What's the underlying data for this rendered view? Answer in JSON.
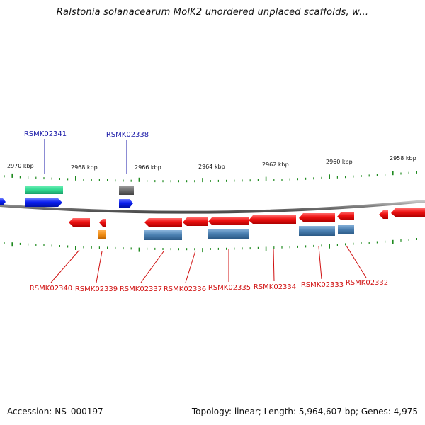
{
  "title": "Ralstonia solanacearum MolK2 unordered unplaced scaffolds, w...",
  "footer": {
    "accession": "Accession: NS_000197",
    "summary": "Topology: linear; Length: 5,964,607 bp; Genes: 4,975"
  },
  "colors": {
    "forward_gene": "#0a1ef0",
    "reverse_gene": "#f01010",
    "forward_label": "#1a1aa8",
    "reverse_label": "#d01010",
    "tick": "#1f8a1f",
    "backbone": "#8a8a8a",
    "rna_green": "#30d890",
    "rna_gray": "#6a6a6a",
    "rna_orange": "#f08c14",
    "rna_steel": "#4a7fb0"
  },
  "axis": {
    "unit": "kbp",
    "ticks": [
      {
        "label": "2970 kbp"
      },
      {
        "label": "2968 kbp"
      },
      {
        "label": "2966 kbp"
      },
      {
        "label": "2964 kbp"
      },
      {
        "label": "2962 kbp"
      },
      {
        "label": "2960 kbp"
      },
      {
        "label": "2958 kbp"
      }
    ]
  },
  "genes_forward": [
    {
      "label": "RSMK02341"
    },
    {
      "label": "RSMK02338"
    }
  ],
  "genes_reverse": [
    {
      "label": "RSMK02340"
    },
    {
      "label": "RSMK02339"
    },
    {
      "label": "RSMK02337"
    },
    {
      "label": "RSMK02336"
    },
    {
      "label": "RSMK02335"
    },
    {
      "label": "RSMK02334"
    },
    {
      "label": "RSMK02333"
    },
    {
      "label": "RSMK02332"
    }
  ]
}
